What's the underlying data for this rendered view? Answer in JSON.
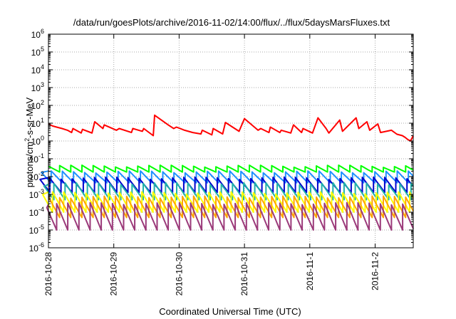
{
  "chart_data": {
    "type": "line",
    "title": "/data/run/goesPlots/archive/2016-11-02/14:00/flux/../flux/5daysMarsFluxes.txt",
    "xlabel": "Coordinated Universal Time (UTC)",
    "ylabel": {
      "prefix": "protons/cm",
      "superscript": "2",
      "suffix": "-s-sr-MeV"
    },
    "x_ticks": [
      "2016-10-28",
      "2016-10-29",
      "2016-10-30",
      "2016-10-31",
      "2016-11-1",
      "2016-11-2"
    ],
    "xlim": [
      "2016-10-28T00:00",
      "2016-11-02T14:00"
    ],
    "y_scale": "log",
    "ylim": [
      1e-06,
      1000000.0
    ],
    "y_ticks": [
      {
        "base": "10",
        "exp": "6"
      },
      {
        "base": "10",
        "exp": "5"
      },
      {
        "base": "10",
        "exp": "4"
      },
      {
        "base": "10",
        "exp": "3"
      },
      {
        "base": "10",
        "exp": "2"
      },
      {
        "base": "10",
        "exp": "1"
      },
      {
        "base": "10",
        "exp": "0"
      },
      {
        "base": "10",
        "exp": "-1"
      },
      {
        "base": "10",
        "exp": "-2"
      },
      {
        "base": "10",
        "exp": "-3"
      },
      {
        "base": "10",
        "exp": "-4"
      },
      {
        "base": "10",
        "exp": "-5"
      },
      {
        "base": "10",
        "exp": "-6"
      }
    ],
    "grid": true,
    "legend": "none",
    "series": [
      {
        "color": "#ff0000",
        "x": [
          "2016-10-28T00:00",
          "2016-10-28T01:30",
          "2016-10-28T03:00",
          "2016-10-28T05:00",
          "2016-10-28T07:00",
          "2016-10-28T08:30",
          "2016-10-28T09:00",
          "2016-10-28T12:00",
          "2016-10-28T12:30",
          "2016-10-28T16:00",
          "2016-10-28T17:00",
          "2016-10-28T20:00",
          "2016-10-28T20:30",
          "2016-10-29T01:00",
          "2016-10-29T02:00",
          "2016-10-29T06:30",
          "2016-10-29T07:00",
          "2016-10-29T10:30",
          "2016-10-29T11:00",
          "2016-10-29T14:30",
          "2016-10-29T15:00",
          "2016-10-29T20:00",
          "2016-10-29T22:00",
          "2016-10-29T23:00",
          "2016-10-30T02:00",
          "2016-10-30T05:00",
          "2016-10-30T08:00",
          "2016-10-30T08:30",
          "2016-10-30T12:00",
          "2016-10-30T12:30",
          "2016-10-30T16:00",
          "2016-10-30T17:00",
          "2016-10-30T22:00",
          "2016-10-31T00:00",
          "2016-10-31T05:00",
          "2016-10-31T06:00",
          "2016-10-31T09:00",
          "2016-10-31T09:30",
          "2016-10-31T13:00",
          "2016-10-31T13:30",
          "2016-10-31T17:00",
          "2016-10-31T18:00",
          "2016-10-31T21:00",
          "2016-10-31T21:30",
          "2016-11-01T01:00",
          "2016-11-01T03:00",
          "2016-11-01T06:00",
          "2016-11-01T07:00",
          "2016-11-01T11:00",
          "2016-11-01T12:00",
          "2016-11-01T17:00",
          "2016-11-01T18:00",
          "2016-11-01T21:00",
          "2016-11-01T22:00",
          "2016-11-02T01:00",
          "2016-11-02T02:00",
          "2016-11-02T06:00",
          "2016-11-02T08:00",
          "2016-11-02T10:00",
          "2016-11-02T11:00",
          "2016-11-02T12:00",
          "2016-11-02T13:00",
          "2016-11-02T14:00"
        ],
        "values": [
          9,
          7,
          6,
          5,
          4,
          3,
          5,
          2.8,
          4.5,
          2.8,
          12,
          5,
          8,
          4,
          5,
          3,
          5,
          3.5,
          5,
          2,
          28,
          8,
          5,
          6,
          4,
          3,
          2.5,
          4,
          2.2,
          5,
          2.5,
          11,
          3.5,
          18,
          4,
          5,
          3,
          6,
          3,
          4,
          2.8,
          8,
          3,
          5,
          2.8,
          20,
          5,
          2.8,
          15,
          3.5,
          20,
          5,
          12,
          4,
          9,
          3,
          4,
          2.4,
          2,
          1.6,
          1.2,
          1,
          2
        ]
      },
      {
        "color": "#00ff00",
        "cycle": {
          "start": "2016-10-28T00:00",
          "period_hours": 4.1,
          "peak": 0.038,
          "trough": 0.018
        }
      },
      {
        "color": "#1e90ff",
        "cycle": {
          "start": "2016-10-28T01:00",
          "period_hours": 4.1,
          "peak": 0.018,
          "trough": 0.0045
        }
      },
      {
        "color": "#0000cd",
        "cycle": {
          "start": "2016-10-28T00:30",
          "period_hours": 4.1,
          "peak": 0.008,
          "trough": 0.0013
        }
      },
      {
        "color": "#20b2aa",
        "cycle": {
          "start": "2016-10-28T02:00",
          "period_hours": 4.1,
          "peak": 0.004,
          "trough": 0.0005
        }
      },
      {
        "color": "#ffff00",
        "cycle": {
          "start": "2016-10-28T01:30",
          "period_hours": 4.1,
          "peak": 0.0012,
          "trough": 0.0001
        }
      },
      {
        "color": "#ffa500",
        "cycle": {
          "start": "2016-10-28T00:00",
          "period_hours": 4.1,
          "peak": 0.0007,
          "trough": 5e-05
        }
      },
      {
        "color": "#9b3a7a",
        "cycle": {
          "start": "2016-10-28T03:00",
          "period_hours": 4.1,
          "peak": 0.0003,
          "trough": 1e-05
        }
      }
    ]
  }
}
